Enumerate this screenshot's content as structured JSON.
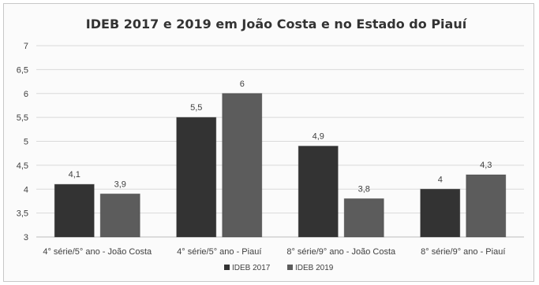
{
  "chart_data": {
    "type": "bar",
    "title": "IDEB 2017 e 2019 em João Costa e no Estado do Piauí",
    "categories": [
      "4° série/5° ano - João Costa",
      "4° série/5° ano - Piauí",
      "8° série/9° ano - João Costa",
      "8° série/9° ano - Piauí"
    ],
    "series": [
      {
        "name": "IDEB 2017",
        "values": [
          4.1,
          5.5,
          4.9,
          4.0
        ],
        "labels": [
          "4,1",
          "5,5",
          "4,9",
          "4"
        ],
        "color": "#333333"
      },
      {
        "name": "IDEB 2019",
        "values": [
          3.9,
          6.0,
          3.8,
          4.3
        ],
        "labels": [
          "3,9",
          "6",
          "3,8",
          "4,3"
        ],
        "color": "#5c5c5c"
      }
    ],
    "ylim": [
      3,
      7
    ],
    "yticks": [
      {
        "value": 3,
        "label": "3"
      },
      {
        "value": 3.5,
        "label": "3,5"
      },
      {
        "value": 4,
        "label": "4"
      },
      {
        "value": 4.5,
        "label": "4,5"
      },
      {
        "value": 5,
        "label": "5"
      },
      {
        "value": 5.5,
        "label": "5,5"
      },
      {
        "value": 6,
        "label": "6"
      },
      {
        "value": 6.5,
        "label": "6,5"
      },
      {
        "value": 7,
        "label": "7"
      }
    ],
    "grid": true,
    "legend_position": "bottom-center",
    "xlabel": "",
    "ylabel": ""
  }
}
